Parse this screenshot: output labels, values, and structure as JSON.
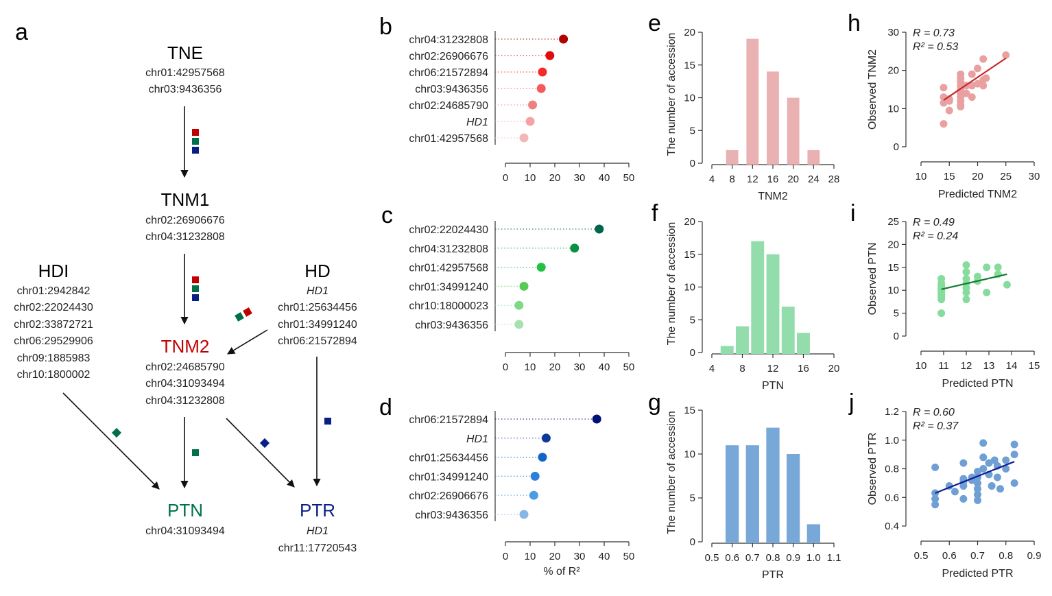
{
  "colors": {
    "red": "#c00000",
    "green": "#00704a",
    "blue": "#0a1f86",
    "black": "#111111",
    "red_light": "#e9b1b1",
    "green_light": "#93dcab",
    "blue_light": "#78a8d8"
  },
  "panel_labels": {
    "a": "a",
    "b": "b",
    "c": "c",
    "d": "d",
    "e": "e",
    "f": "f",
    "g": "g",
    "h": "h",
    "i": "i",
    "j": "j"
  },
  "network": {
    "TNE": {
      "title": "TNE",
      "loci": [
        "chr01:42957568",
        "chr03:9436356"
      ]
    },
    "TNM1": {
      "title": "TNM1",
      "loci": [
        "chr02:26906676",
        "chr04:31232808"
      ]
    },
    "TNM2": {
      "title": "TNM2",
      "loci": [
        "chr02:24685790",
        "chr04:31093494",
        "chr04:31232808"
      ]
    },
    "HDI": {
      "title": "HDI",
      "loci": [
        "chr01:2942842",
        "chr02:22024430",
        "chr02:33872721",
        "chr06:29529906",
        "chr09:1885983",
        "chr10:1800002"
      ]
    },
    "HD": {
      "title": "HD",
      "gene": "HD1",
      "loci": [
        "chr01:25634456",
        "chr01:34991240",
        "chr06:21572894"
      ]
    },
    "PTN": {
      "title": "PTN",
      "loci": [
        "chr04:31093494"
      ]
    },
    "PTR": {
      "title": "PTR",
      "gene": "HD1",
      "loci": [
        "chr11:17720543"
      ]
    }
  },
  "chart_data": [
    {
      "panel": "b",
      "type": "scatter",
      "subtype": "lollipop",
      "xlabel": "",
      "xlim": [
        0,
        50
      ],
      "xticks": [
        0,
        10,
        20,
        30,
        40,
        50
      ],
      "categories": [
        "chr04:31232808",
        "chr02:26906676",
        "chr06:21572894",
        "chr03:9436356",
        "chr02:24685790",
        "HD1",
        "chr01:42957568"
      ],
      "values": [
        23.5,
        18,
        15,
        14.5,
        11,
        10,
        7.5
      ],
      "colors": [
        "#b00000",
        "#e00c0c",
        "#f52a2a",
        "#f45a5a",
        "#f08080",
        "#f3a3a3",
        "#f1b8b8"
      ]
    },
    {
      "panel": "c",
      "type": "scatter",
      "subtype": "lollipop",
      "xlabel": "",
      "xlim": [
        0,
        50
      ],
      "xticks": [
        0,
        10,
        20,
        30,
        40,
        50
      ],
      "categories": [
        "chr02:22024430",
        "chr04:31232808",
        "chr01:42957568",
        "chr01:34991240",
        "chr10:18000023",
        "chr03:9436356"
      ],
      "values": [
        38,
        28,
        14.5,
        7.5,
        5.5,
        5.5
      ],
      "colors": [
        "#00654a",
        "#089140",
        "#22c144",
        "#55cc55",
        "#7fd889",
        "#a4e2b0"
      ]
    },
    {
      "panel": "d",
      "type": "scatter",
      "subtype": "lollipop",
      "xlabel": "% of R²",
      "xlim": [
        0,
        50
      ],
      "xticks": [
        0,
        10,
        20,
        30,
        40,
        50
      ],
      "categories": [
        "chr06:21572894",
        "HD1",
        "chr01:25634456",
        "chr01:34991240",
        "chr02:26906676",
        "chr03:9436356"
      ],
      "values": [
        37,
        16.5,
        15,
        12,
        11.5,
        7.5
      ],
      "colors": [
        "#00107a",
        "#0d3a9a",
        "#1564c8",
        "#2a80dc",
        "#4c9be5",
        "#86b6e6"
      ]
    },
    {
      "panel": "e",
      "type": "bar",
      "xlabel": "TNM2",
      "ylabel": "The number of accession",
      "xlim": [
        4,
        28
      ],
      "xticks": [
        4,
        8,
        12,
        16,
        20,
        24,
        28
      ],
      "ylim": [
        0,
        20
      ],
      "yticks": [
        0,
        5,
        10,
        15,
        20
      ],
      "x": [
        8,
        12,
        16,
        20,
        24
      ],
      "values": [
        2,
        19,
        14,
        10,
        2
      ],
      "bar_width": 2.4,
      "color": "#e9b1b1"
    },
    {
      "panel": "f",
      "type": "bar",
      "xlabel": "PTN",
      "ylabel": "The number of accession",
      "xlim": [
        4,
        20
      ],
      "xticks": [
        4,
        8,
        12,
        16,
        20
      ],
      "ylim": [
        0,
        20
      ],
      "yticks": [
        0,
        5,
        10,
        15,
        20
      ],
      "x": [
        6,
        8,
        10,
        12,
        14,
        16
      ],
      "values": [
        1,
        4,
        17,
        15,
        7,
        3
      ],
      "bar_width": 1.7,
      "color": "#93dcab"
    },
    {
      "panel": "g",
      "type": "bar",
      "xlabel": "PTR",
      "ylabel": "The number of accession",
      "xlim": [
        0.5,
        1.1
      ],
      "xticks": [
        "0.5",
        "0.6",
        "0.7",
        "0.8",
        "0.9",
        "1.0",
        "1.1"
      ],
      "ylim": [
        0,
        15
      ],
      "yticks": [
        0,
        5,
        10,
        15
      ],
      "x": [
        0.6,
        0.7,
        0.8,
        0.9,
        1.0
      ],
      "values": [
        11,
        11,
        13,
        10,
        2
      ],
      "bar_width": 0.065,
      "color": "#78a8d8"
    },
    {
      "panel": "h",
      "type": "scatter",
      "xlabel": "Predicted TNM2",
      "ylabel": "Observed TNM2",
      "xlim": [
        10,
        30
      ],
      "xticks": [
        "10",
        "15",
        "20",
        "25",
        "30"
      ],
      "ylim": [
        0,
        30
      ],
      "yticks": [
        "0",
        "10",
        "20",
        "30"
      ],
      "R": "R  = 0.73",
      "R2": "R² = 0.53",
      "point_color": "#e9a0a0",
      "line_color": "#c62828",
      "fit": [
        [
          14,
          12.2
        ],
        [
          25,
          23.2
        ]
      ],
      "points": [
        [
          14,
          15.5
        ],
        [
          14,
          13
        ],
        [
          14,
          11.5
        ],
        [
          14,
          6
        ],
        [
          15,
          12.5
        ],
        [
          15,
          9.5
        ],
        [
          15,
          12
        ],
        [
          17,
          19
        ],
        [
          17,
          18
        ],
        [
          17,
          17
        ],
        [
          17,
          16
        ],
        [
          17,
          15
        ],
        [
          17,
          14
        ],
        [
          17,
          13
        ],
        [
          17,
          12
        ],
        [
          17,
          11
        ],
        [
          17,
          10.5
        ],
        [
          18,
          14
        ],
        [
          18,
          16
        ],
        [
          19,
          13
        ],
        [
          19,
          16
        ],
        [
          19,
          19
        ],
        [
          20,
          20.5
        ],
        [
          20,
          16.5
        ],
        [
          21,
          23
        ],
        [
          21,
          17.5
        ],
        [
          21,
          16
        ],
        [
          21.5,
          18
        ],
        [
          25,
          24
        ]
      ]
    },
    {
      "panel": "i",
      "type": "scatter",
      "xlabel": "Predicted PTN",
      "ylabel": "Observed PTN",
      "xlim": [
        10,
        15
      ],
      "xticks": [
        "10",
        "11",
        "12",
        "13",
        "14",
        "15"
      ],
      "ylim": [
        0,
        25
      ],
      "yticks": [
        "0",
        "5",
        "10",
        "15",
        "20",
        "25"
      ],
      "R": "R  = 0.49",
      "R2": "R² = 0.24",
      "point_color": "#86dc9c",
      "line_color": "#137a2e",
      "fit": [
        [
          10.9,
          10.2
        ],
        [
          13.8,
          13.5
        ]
      ],
      "points": [
        [
          10.9,
          12.5
        ],
        [
          10.9,
          11.5
        ],
        [
          10.9,
          11
        ],
        [
          10.9,
          10.5
        ],
        [
          10.9,
          10
        ],
        [
          10.9,
          9.5
        ],
        [
          10.9,
          9
        ],
        [
          10.9,
          8.5
        ],
        [
          10.9,
          8
        ],
        [
          10.9,
          5
        ],
        [
          12,
          15.5
        ],
        [
          12,
          14
        ],
        [
          12,
          12.5
        ],
        [
          12,
          11.5
        ],
        [
          12,
          10.5
        ],
        [
          12,
          9.5
        ],
        [
          12,
          8
        ],
        [
          12.5,
          12
        ],
        [
          12.5,
          13
        ],
        [
          12.9,
          15
        ],
        [
          12.9,
          9.5
        ],
        [
          13.4,
          15
        ],
        [
          13.4,
          13.5
        ],
        [
          13.8,
          11.2
        ]
      ]
    },
    {
      "panel": "j",
      "type": "scatter",
      "xlabel": "Predicted PTR",
      "ylabel": "Observed PTR",
      "xlim": [
        0.5,
        0.9
      ],
      "xticks": [
        "0.5",
        "0.6",
        "0.7",
        "0.8",
        "0.9"
      ],
      "ylim": [
        0.4,
        1.2
      ],
      "yticks": [
        "0.4",
        "0.6",
        "0.8",
        "1.0",
        "1.2"
      ],
      "R": "R = 0.60",
      "R2": "R² = 0.37",
      "point_color": "#6f9fd4",
      "line_color": "#0d1e8e",
      "fit": [
        [
          0.55,
          0.63
        ],
        [
          0.83,
          0.85
        ]
      ],
      "points": [
        [
          0.55,
          0.81
        ],
        [
          0.55,
          0.63
        ],
        [
          0.55,
          0.59
        ],
        [
          0.55,
          0.55
        ],
        [
          0.6,
          0.68
        ],
        [
          0.62,
          0.64
        ],
        [
          0.65,
          0.84
        ],
        [
          0.65,
          0.73
        ],
        [
          0.65,
          0.71
        ],
        [
          0.65,
          0.68
        ],
        [
          0.65,
          0.59
        ],
        [
          0.68,
          0.74
        ],
        [
          0.68,
          0.72
        ],
        [
          0.7,
          0.78
        ],
        [
          0.7,
          0.74
        ],
        [
          0.7,
          0.7
        ],
        [
          0.7,
          0.66
        ],
        [
          0.7,
          0.62
        ],
        [
          0.7,
          0.58
        ],
        [
          0.72,
          0.98
        ],
        [
          0.72,
          0.88
        ],
        [
          0.72,
          0.8
        ],
        [
          0.74,
          0.84
        ],
        [
          0.74,
          0.76
        ],
        [
          0.75,
          0.68
        ],
        [
          0.76,
          0.86
        ],
        [
          0.77,
          0.82
        ],
        [
          0.77,
          0.74
        ],
        [
          0.78,
          0.66
        ],
        [
          0.8,
          0.86
        ],
        [
          0.8,
          0.8
        ],
        [
          0.83,
          0.97
        ],
        [
          0.83,
          0.9
        ],
        [
          0.83,
          0.7
        ]
      ]
    }
  ]
}
